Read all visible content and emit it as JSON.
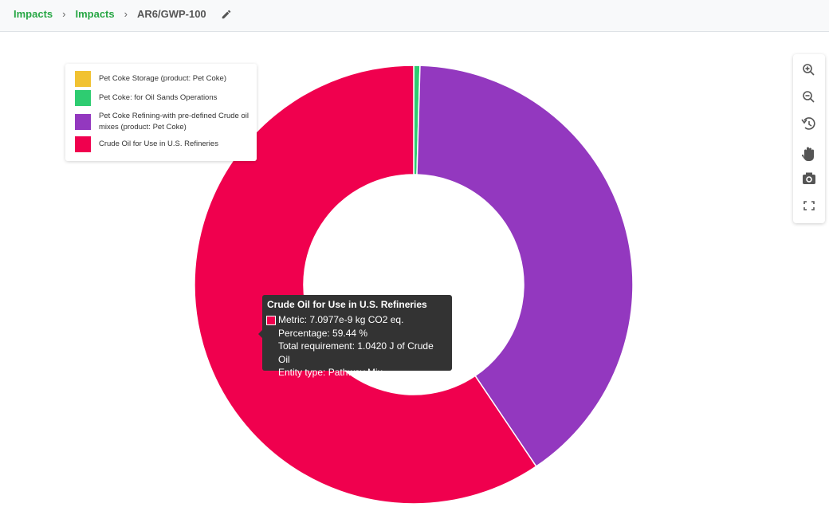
{
  "breadcrumb": [
    "Impacts",
    "Impacts",
    "AR6/GWP-100"
  ],
  "chart_data": {
    "type": "donut",
    "categories": [
      "Pet Coke Storage (product: Pet Coke)",
      "Pet Coke: for Oil Sands Operations",
      "Pet Coke Refining-with pre-defined Crude oil mixes (product: Pet Coke)",
      "Crude Oil for Use in U.S. Refineries"
    ],
    "values": [
      0.01,
      0.45,
      40.1,
      59.44
    ],
    "colors": [
      "#f1c232",
      "#2ecc71",
      "#9338bf",
      "#f0004e"
    ],
    "legend": "top-left",
    "tooltip": {
      "series": 3,
      "title": "Crude Oil for Use in U.S. Refineries",
      "lines": [
        "Metric: 7.0977e-9 kg CO2 eq.",
        "Percentage: 59.44 %",
        "Total requirement: 1.0420 J of Crude Oil",
        "Entity type: Pathway Mix"
      ]
    }
  }
}
